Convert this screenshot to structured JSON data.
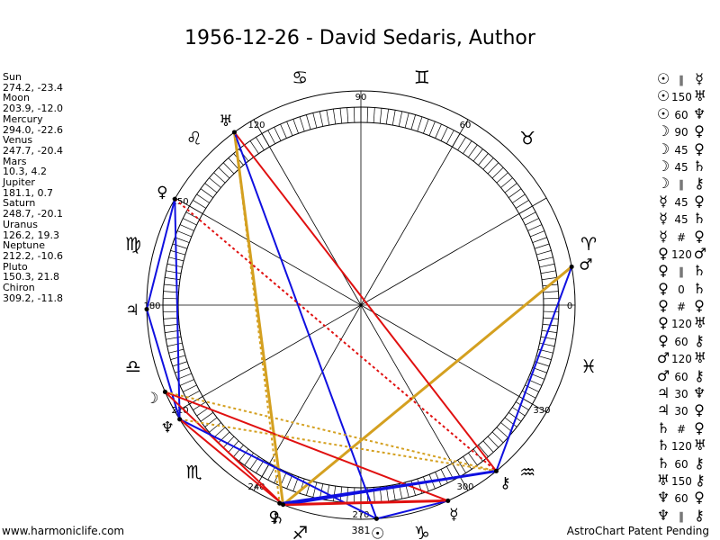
{
  "title": "1956-12-26 - David Sedaris, Author",
  "planets": [
    {
      "name": "Sun",
      "coords": "274.2, -23.4",
      "lon": 274.2,
      "glyph": "☉"
    },
    {
      "name": "Moon",
      "coords": "203.9, -12.0",
      "lon": 203.9,
      "glyph": "☽"
    },
    {
      "name": "Mercury",
      "coords": "294.0, -22.6",
      "lon": 294.0,
      "glyph": "☿"
    },
    {
      "name": "Venus",
      "coords": "247.7, -20.4",
      "lon": 247.7,
      "glyph": "♀"
    },
    {
      "name": "Mars",
      "coords": "10.3, 4.2",
      "lon": 10.3,
      "glyph": "♂"
    },
    {
      "name": "Jupiter",
      "coords": "181.1, 0.7",
      "lon": 181.1,
      "glyph": "♃"
    },
    {
      "name": "Saturn",
      "coords": "248.7, -20.1",
      "lon": 248.7,
      "glyph": "♄"
    },
    {
      "name": "Uranus",
      "coords": "126.2, 19.3",
      "lon": 126.2,
      "glyph": "♅"
    },
    {
      "name": "Neptune",
      "coords": "212.2, -10.6",
      "lon": 212.2,
      "glyph": "♆"
    },
    {
      "name": "Pluto",
      "coords": "150.3, 21.8",
      "lon": 150.3,
      "glyph": "♀"
    },
    {
      "name": "Chiron",
      "coords": "309.2, -11.8",
      "lon": 309.2,
      "glyph": "⚷"
    }
  ],
  "aspects": [
    {
      "a": "☉",
      "sym": "∥",
      "b": "☿"
    },
    {
      "a": "☉",
      "sym": "150",
      "b": "♅"
    },
    {
      "a": "☉",
      "sym": "60",
      "b": "♆"
    },
    {
      "a": "☽",
      "sym": "90",
      "b": "♀"
    },
    {
      "a": "☽",
      "sym": "45",
      "b": "♀"
    },
    {
      "a": "☽",
      "sym": "45",
      "b": "♄"
    },
    {
      "a": "☽",
      "sym": "∥",
      "b": "⚷"
    },
    {
      "a": "☿",
      "sym": "45",
      "b": "♀"
    },
    {
      "a": "☿",
      "sym": "45",
      "b": "♄"
    },
    {
      "a": "☿",
      "sym": "#",
      "b": "♀"
    },
    {
      "a": "♀",
      "sym": "120",
      "b": "♂"
    },
    {
      "a": "♀",
      "sym": "∥",
      "b": "♄"
    },
    {
      "a": "♀",
      "sym": "0",
      "b": "♄"
    },
    {
      "a": "♀",
      "sym": "#",
      "b": "♀"
    },
    {
      "a": "♀",
      "sym": "120",
      "b": "♅"
    },
    {
      "a": "♀",
      "sym": "60",
      "b": "⚷"
    },
    {
      "a": "♂",
      "sym": "120",
      "b": "♅"
    },
    {
      "a": "♂",
      "sym": "60",
      "b": "⚷"
    },
    {
      "a": "♃",
      "sym": "30",
      "b": "♆"
    },
    {
      "a": "♃",
      "sym": "30",
      "b": "♀"
    },
    {
      "a": "♄",
      "sym": "#",
      "b": "♀"
    },
    {
      "a": "♄",
      "sym": "120",
      "b": "♅"
    },
    {
      "a": "♄",
      "sym": "60",
      "b": "⚷"
    },
    {
      "a": "♅",
      "sym": "150",
      "b": "⚷"
    },
    {
      "a": "♆",
      "sym": "60",
      "b": "♀"
    },
    {
      "a": "♆",
      "sym": "∥",
      "b": "⚷"
    }
  ],
  "zodiac": [
    {
      "lon": 15,
      "glyph": "♈"
    },
    {
      "lon": 45,
      "glyph": "♉"
    },
    {
      "lon": 75,
      "glyph": "♊"
    },
    {
      "lon": 105,
      "glyph": "♋"
    },
    {
      "lon": 135,
      "glyph": "♌"
    },
    {
      "lon": 165,
      "glyph": "♍"
    },
    {
      "lon": 195,
      "glyph": "♎"
    },
    {
      "lon": 225,
      "glyph": "♏"
    },
    {
      "lon": 255,
      "glyph": "♐"
    },
    {
      "lon": 285,
      "glyph": "♑"
    },
    {
      "lon": 315,
      "glyph": "♒"
    },
    {
      "lon": 345,
      "glyph": "♓"
    }
  ],
  "degree_labels": [
    {
      "lon": 0,
      "text": "0"
    },
    {
      "lon": 60,
      "text": "60"
    },
    {
      "lon": 90,
      "text": "90"
    },
    {
      "lon": 120,
      "text": "120"
    },
    {
      "lon": 150,
      "text": "150"
    },
    {
      "lon": 180,
      "text": "180"
    },
    {
      "lon": 210,
      "text": "210"
    },
    {
      "lon": 240,
      "text": "240"
    },
    {
      "lon": 270,
      "text": "270"
    },
    {
      "lon": 300,
      "text": "300"
    },
    {
      "lon": 330,
      "text": "330"
    }
  ],
  "bottom_mark": "381",
  "aspect_lines": [
    {
      "from": "Uranus",
      "to": "Saturn",
      "color": "#d4a020",
      "style": "solid",
      "w": 3
    },
    {
      "from": "Mars",
      "to": "Saturn",
      "color": "#d4a020",
      "style": "solid",
      "w": 3
    },
    {
      "from": "Uranus",
      "to": "Chiron",
      "color": "#e01010",
      "style": "solid",
      "w": 2
    },
    {
      "from": "Uranus",
      "to": "Sun",
      "color": "#1010e0",
      "style": "solid",
      "w": 2
    },
    {
      "from": "Uranus",
      "to": "Venus",
      "color": "#d4a020",
      "style": "dotted",
      "w": 2
    },
    {
      "from": "Pluto",
      "to": "Chiron",
      "color": "#e01010",
      "style": "dotted",
      "w": 2
    },
    {
      "from": "Pluto",
      "to": "Jupiter",
      "color": "#1010e0",
      "style": "solid",
      "w": 2
    },
    {
      "from": "Pluto",
      "to": "Neptune",
      "color": "#1010e0",
      "style": "solid",
      "w": 2
    },
    {
      "from": "Jupiter",
      "to": "Neptune",
      "color": "#1010e0",
      "style": "solid",
      "w": 2
    },
    {
      "from": "Moon",
      "to": "Mercury",
      "color": "#e01010",
      "style": "solid",
      "w": 2
    },
    {
      "from": "Moon",
      "to": "Saturn",
      "color": "#e01010",
      "style": "solid",
      "w": 2
    },
    {
      "from": "Moon",
      "to": "Chiron",
      "color": "#d4a020",
      "style": "dotted",
      "w": 2
    },
    {
      "from": "Neptune",
      "to": "Chiron",
      "color": "#d4a020",
      "style": "dotted",
      "w": 2
    },
    {
      "from": "Neptune",
      "to": "Sun",
      "color": "#1010e0",
      "style": "solid",
      "w": 2
    },
    {
      "from": "Saturn",
      "to": "Mercury",
      "color": "#e01010",
      "style": "solid",
      "w": 3
    },
    {
      "from": "Saturn",
      "to": "Chiron",
      "color": "#1010e0",
      "style": "solid",
      "w": 3
    },
    {
      "from": "Saturn",
      "to": "Neptune",
      "color": "#e01010",
      "style": "solid",
      "w": 2
    },
    {
      "from": "Venus",
      "to": "Chiron",
      "color": "#1010e0",
      "style": "solid",
      "w": 2
    },
    {
      "from": "Sun",
      "to": "Mercury",
      "color": "#1010e0",
      "style": "solid",
      "w": 2
    },
    {
      "from": "Mars",
      "to": "Chiron",
      "color": "#1010e0",
      "style": "solid",
      "w": 2
    },
    {
      "from": "Mercury",
      "to": "Saturn",
      "color": "#e01010",
      "style": "solid",
      "w": 2
    }
  ],
  "footer": {
    "left": "www.harmoniclife.com",
    "right": "AstroChart Patent Pending"
  }
}
